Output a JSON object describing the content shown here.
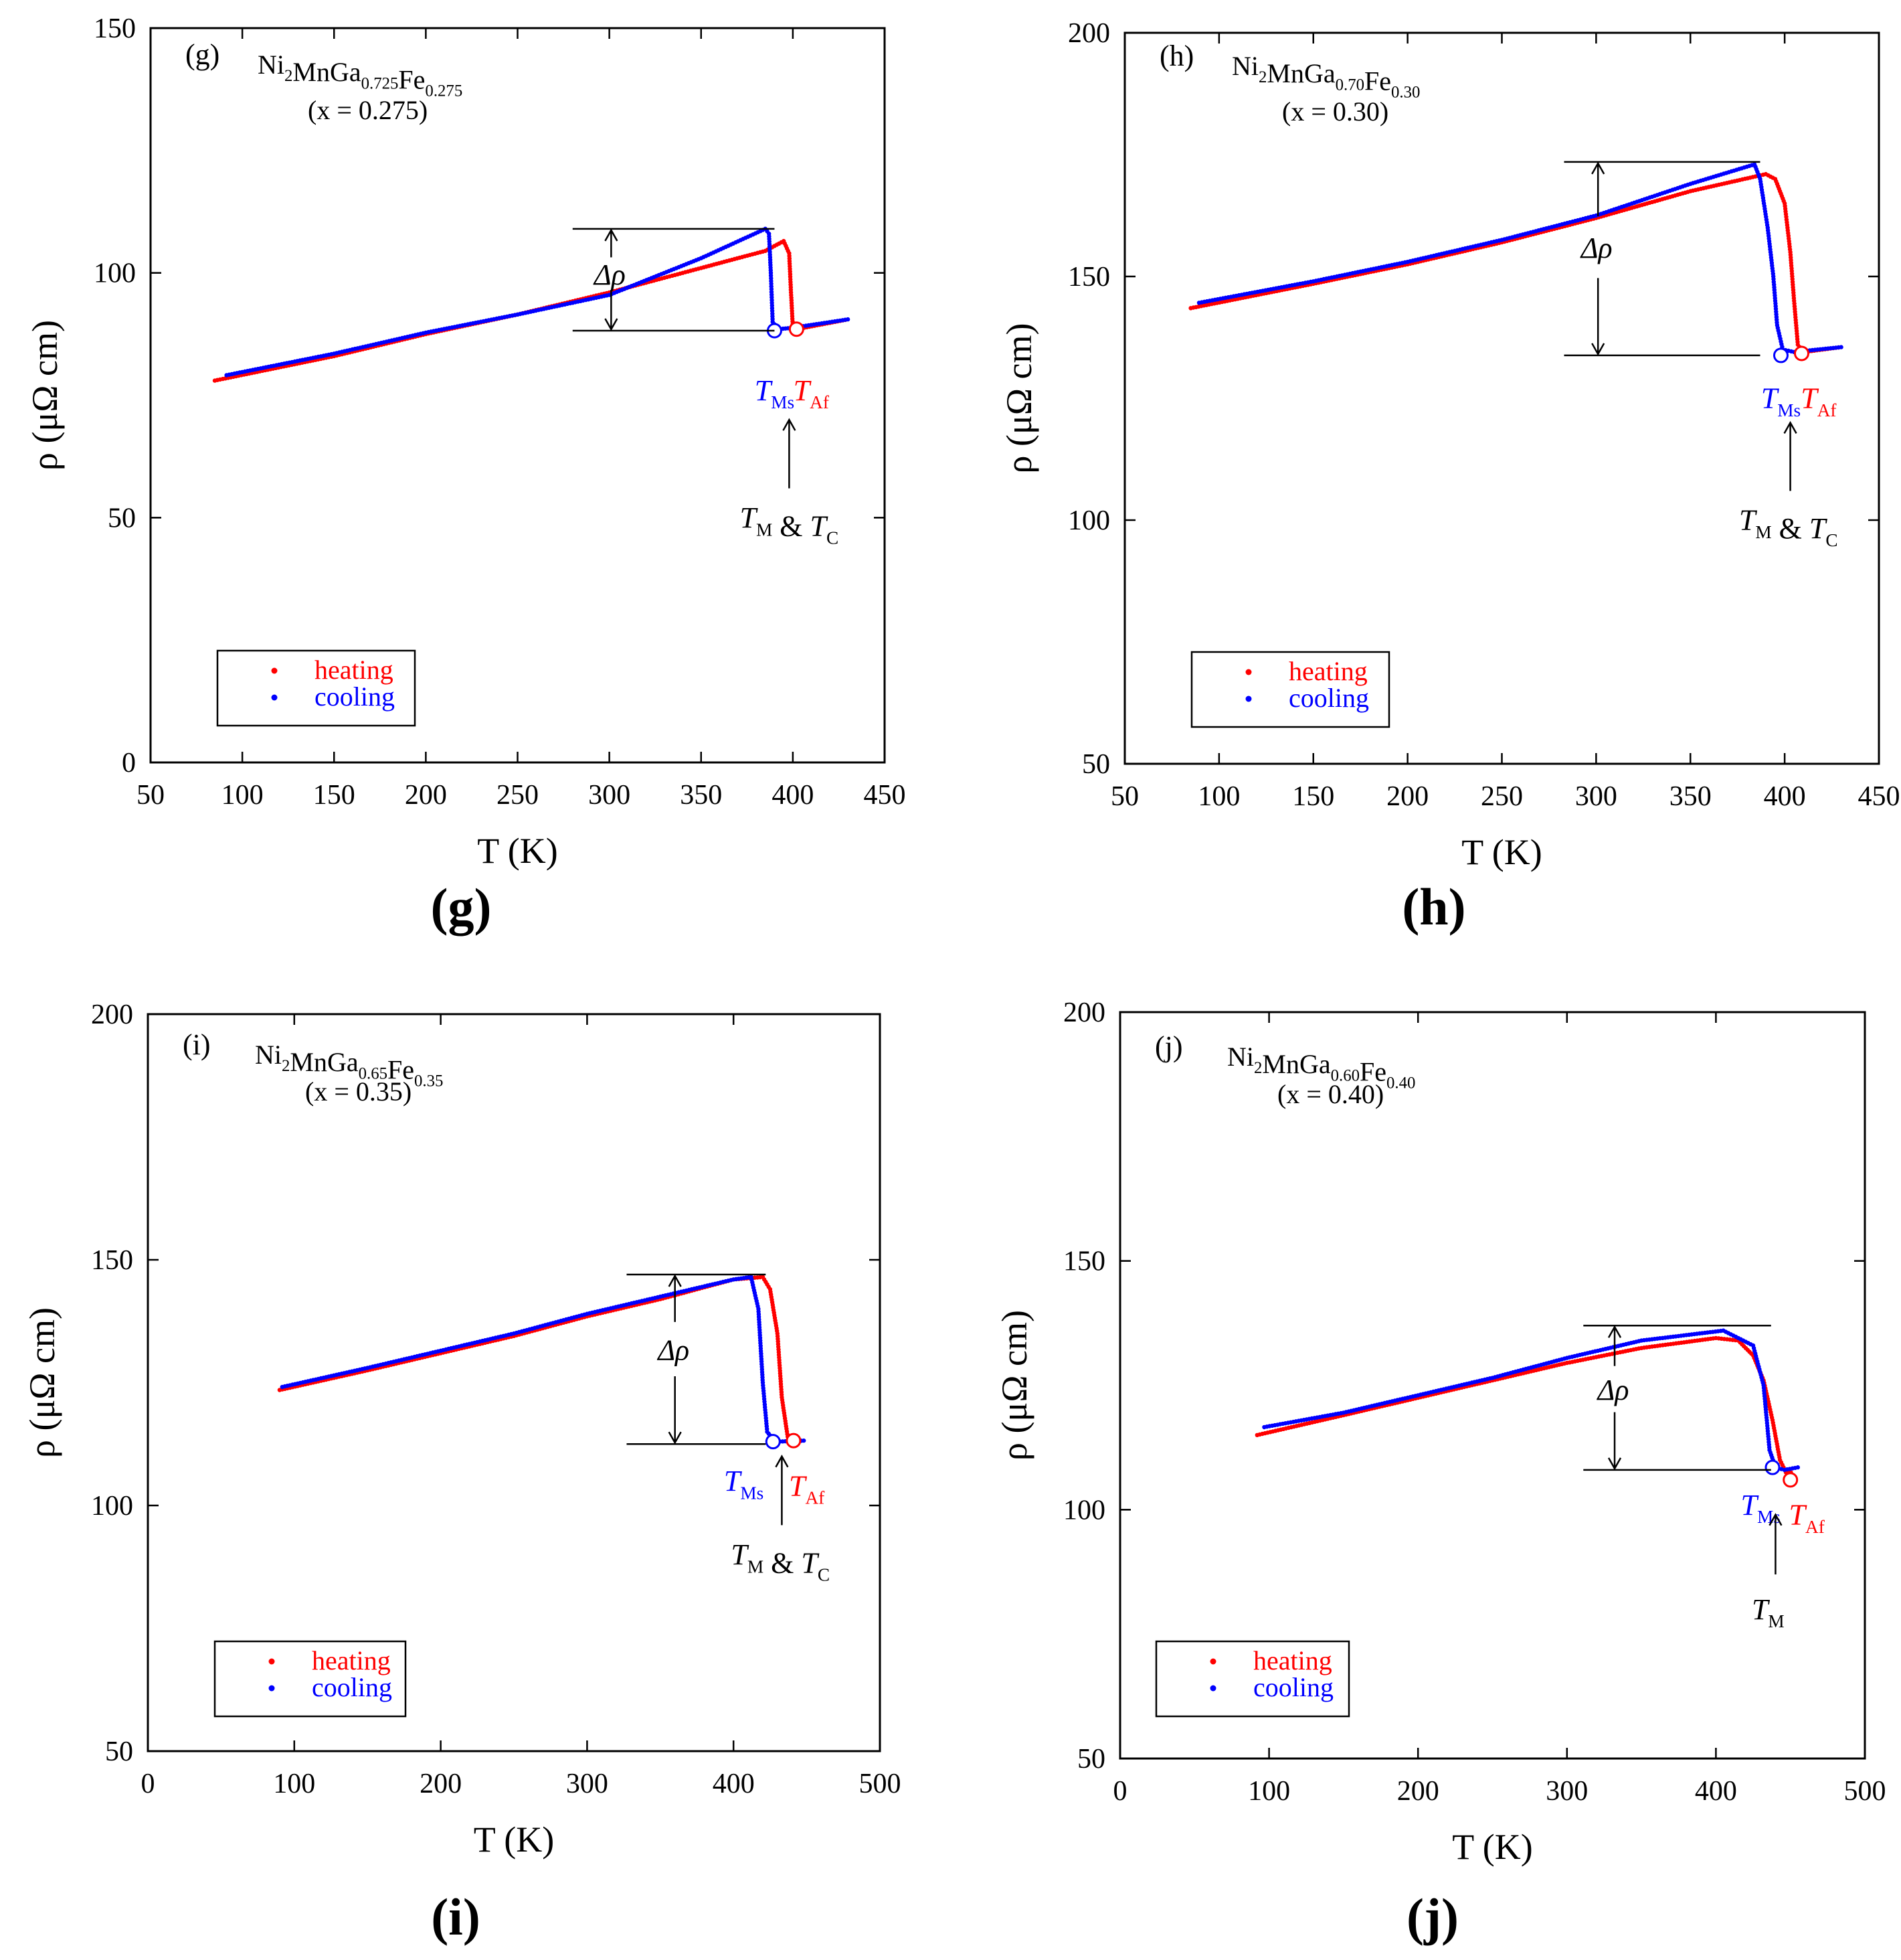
{
  "colors": {
    "heating": "#ff0000",
    "cooling": "#0000ff",
    "axis": "#000000"
  },
  "chart_data": [
    {
      "type": "scatter",
      "panel_label": "(g)",
      "caption": "(g)",
      "composition": {
        "base": "Ni",
        "sub1": "2",
        "mid": "MnGa",
        "sub2": "0.725",
        "end": "Fe",
        "sub3": "0.275"
      },
      "x_value_label": "(x = 0.275)",
      "xlabel": "T (K)",
      "ylabel": "ρ (μΩ cm)",
      "xlim": [
        50,
        450
      ],
      "ylim": [
        0,
        150
      ],
      "xticks": [
        50,
        100,
        150,
        200,
        250,
        300,
        350,
        400,
        450
      ],
      "yticks": [
        0,
        50,
        100,
        150
      ],
      "legend": [
        "heating",
        "cooling"
      ],
      "series": [
        {
          "name": "heating",
          "points": [
            [
              85,
              78
            ],
            [
              150,
              83
            ],
            [
              200,
              87.5
            ],
            [
              250,
              91.5
            ],
            [
              300,
              96
            ],
            [
              350,
              101
            ],
            [
              385,
              104.5
            ],
            [
              395,
              106.5
            ],
            [
              398,
              104
            ],
            [
              399,
              96
            ],
            [
              400,
              89
            ],
            [
              402,
              88.5
            ],
            [
              430,
              90.5
            ]
          ]
        },
        {
          "name": "cooling",
          "points": [
            [
              430,
              90.5
            ],
            [
              400,
              88.8
            ],
            [
              392,
              88.5
            ],
            [
              389,
              90
            ],
            [
              388,
              100
            ],
            [
              387,
              108
            ],
            [
              385,
              109
            ],
            [
              350,
              103
            ],
            [
              300,
              95.5
            ],
            [
              250,
              91.5
            ],
            [
              200,
              87.8
            ],
            [
              150,
              83.5
            ],
            [
              90,
              79
            ]
          ]
        }
      ],
      "markers": [
        {
          "name": "T_Ms",
          "series": "cooling",
          "x": 390,
          "y": 88.2
        },
        {
          "name": "T_Af",
          "series": "heating",
          "x": 402,
          "y": 88.5
        }
      ],
      "delta_rho": {
        "label": "Δρ",
        "x_start": 280,
        "x_end": 390,
        "y_top": 109,
        "y_bottom": 88.2,
        "arrow_x": 301
      },
      "transition_labels": {
        "T_Ms": {
          "text": "T",
          "sub": "Ms",
          "x": 390,
          "y": 74
        },
        "T_Af": {
          "text": "T",
          "sub": "Af",
          "x": 410,
          "y": 74
        },
        "T_M_T_C": {
          "t1": "T",
          "sub1": "M",
          "amp": " & ",
          "t2": "T",
          "sub2": "C",
          "x": 398,
          "y": 48,
          "arrow_x": 398,
          "arrow_from": 56,
          "arrow_to": 70
        }
      }
    },
    {
      "type": "scatter",
      "panel_label": "(h)",
      "caption": "(h)",
      "composition": {
        "base": "Ni",
        "sub1": "2",
        "mid": "MnGa",
        "sub2": "0.70",
        "end": "Fe",
        "sub3": "0.30"
      },
      "x_value_label": "(x = 0.30)",
      "xlabel": "T (K)",
      "ylabel": "ρ (μΩ cm)",
      "xlim": [
        50,
        450
      ],
      "ylim": [
        50,
        200
      ],
      "xticks": [
        50,
        100,
        150,
        200,
        250,
        300,
        350,
        400,
        450
      ],
      "yticks": [
        50,
        100,
        150,
        200
      ],
      "legend": [
        "heating",
        "cooling"
      ],
      "series": [
        {
          "name": "heating",
          "points": [
            [
              85,
              143.5
            ],
            [
              150,
              148.5
            ],
            [
              200,
              152.5
            ],
            [
              250,
              157
            ],
            [
              300,
              162
            ],
            [
              350,
              167.5
            ],
            [
              390,
              171
            ],
            [
              395,
              170
            ],
            [
              400,
              165
            ],
            [
              403,
              155
            ],
            [
              405,
              145
            ],
            [
              407,
              136
            ],
            [
              410,
              134.5
            ],
            [
              430,
              135.5
            ]
          ]
        },
        {
          "name": "cooling",
          "points": [
            [
              430,
              135.5
            ],
            [
              405,
              134.5
            ],
            [
              399,
              135
            ],
            [
              396,
              140
            ],
            [
              394,
              150
            ],
            [
              391,
              160
            ],
            [
              387,
              170
            ],
            [
              384,
              173
            ],
            [
              350,
              169
            ],
            [
              300,
              162.5
            ],
            [
              250,
              157.5
            ],
            [
              200,
              153
            ],
            [
              150,
              149
            ],
            [
              88,
              144.5
            ]
          ]
        }
      ],
      "markers": [
        {
          "name": "T_Ms",
          "series": "cooling",
          "x": 398,
          "y": 133.8
        },
        {
          "name": "T_Af",
          "series": "heating",
          "x": 409,
          "y": 134.2
        }
      ],
      "delta_rho": {
        "label": "Δρ",
        "x_start": 283,
        "x_end": 387,
        "y_top": 173.5,
        "y_bottom": 133.8,
        "arrow_x": 301
      },
      "transition_labels": {
        "T_Ms": {
          "text": "T",
          "sub": "Ms",
          "x": 398,
          "y": 123
        },
        "T_Af": {
          "text": "T",
          "sub": "Af",
          "x": 418,
          "y": 123
        },
        "T_M_T_C": {
          "t1": "T",
          "sub1": "M",
          "amp": " & ",
          "t2": "T",
          "sub2": "C",
          "x": 402,
          "y": 98,
          "arrow_x": 403,
          "arrow_from": 106,
          "arrow_to": 120
        }
      }
    },
    {
      "type": "scatter",
      "panel_label": "(i)",
      "caption": "(i)",
      "composition": {
        "base": "Ni",
        "sub1": "2",
        "mid": "MnGa",
        "sub2": "0.65",
        "end": "Fe",
        "sub3": "0.35"
      },
      "x_value_label": "(x = 0.35)",
      "xlabel": "T (K)",
      "ylabel": "ρ (μΩ cm)",
      "xlim": [
        0,
        500
      ],
      "ylim": [
        50,
        200
      ],
      "xticks": [
        0,
        100,
        200,
        300,
        400,
        500
      ],
      "yticks": [
        50,
        100,
        150,
        200
      ],
      "legend": [
        "heating",
        "cooling"
      ],
      "series": [
        {
          "name": "heating",
          "points": [
            [
              90,
              123.5
            ],
            [
              150,
              127.5
            ],
            [
              200,
              131
            ],
            [
              250,
              134.5
            ],
            [
              300,
              138.5
            ],
            [
              350,
              142
            ],
            [
              400,
              146
            ],
            [
              420,
              146.5
            ],
            [
              425,
              144
            ],
            [
              430,
              135
            ],
            [
              433,
              122
            ],
            [
              437,
              114
            ],
            [
              442,
              113.2
            ],
            [
              448,
              113.2
            ]
          ]
        },
        {
          "name": "cooling",
          "points": [
            [
              448,
              113.2
            ],
            [
              430,
              113
            ],
            [
              427,
              113.5
            ],
            [
              423,
              115
            ],
            [
              420,
              125
            ],
            [
              417,
              140
            ],
            [
              412,
              146.5
            ],
            [
              400,
              146
            ],
            [
              350,
              142.5
            ],
            [
              300,
              139
            ],
            [
              250,
              135
            ],
            [
              200,
              131.5
            ],
            [
              150,
              128
            ],
            [
              90,
              124
            ]
          ]
        }
      ],
      "markers": [
        {
          "name": "T_Ms",
          "series": "cooling",
          "x": 427,
          "y": 113
        },
        {
          "name": "T_Af",
          "series": "heating",
          "x": 441,
          "y": 113.2
        }
      ],
      "delta_rho": {
        "label": "Δρ",
        "x_start": 327,
        "x_end": 422,
        "y_top": 147,
        "y_bottom": 112.5,
        "arrow_x": 360
      },
      "transition_labels": {
        "T_Ms": {
          "text": "T",
          "sub": "Ms",
          "x": 407,
          "y": 103
        },
        "T_Af": {
          "text": "T",
          "sub": "Af",
          "x": 450,
          "y": 102
        },
        "T_M_T_C": {
          "t1": "T",
          "sub1": "M",
          "amp": " & ",
          "t2": "T",
          "sub2": "C",
          "x": 432,
          "y": 88,
          "arrow_x": 433,
          "arrow_from": 96,
          "arrow_to": 110
        }
      }
    },
    {
      "type": "scatter",
      "panel_label": "(j)",
      "caption": "(j)",
      "composition": {
        "base": "Ni",
        "sub1": "2",
        "mid": "MnGa",
        "sub2": "0.60",
        "end": "Fe",
        "sub3": "0.40"
      },
      "x_value_label": "(x = 0.40)",
      "xlabel": "T (K)",
      "ylabel": "ρ (μΩ cm)",
      "xlim": [
        0,
        500
      ],
      "ylim": [
        50,
        200
      ],
      "xticks": [
        0,
        100,
        200,
        300,
        400,
        500
      ],
      "yticks": [
        50,
        100,
        150,
        200
      ],
      "legend": [
        "heating",
        "cooling"
      ],
      "series": [
        {
          "name": "heating",
          "points": [
            [
              92,
              115
            ],
            [
              150,
              119
            ],
            [
              200,
              122.5
            ],
            [
              250,
              126
            ],
            [
              300,
              129.5
            ],
            [
              350,
              132.5
            ],
            [
              400,
              134.5
            ],
            [
              415,
              134
            ],
            [
              425,
              131
            ],
            [
              432,
              126
            ],
            [
              438,
              118
            ],
            [
              443,
              110
            ],
            [
              447,
              107.5
            ],
            [
              452,
              107.5
            ]
          ]
        },
        {
          "name": "cooling",
          "points": [
            [
              455,
              108.5
            ],
            [
              446,
              108
            ],
            [
              440,
              108.5
            ],
            [
              436,
              112
            ],
            [
              432,
              125
            ],
            [
              425,
              133
            ],
            [
              405,
              136
            ],
            [
              350,
              134
            ],
            [
              300,
              130.5
            ],
            [
              250,
              126.5
            ],
            [
              200,
              123
            ],
            [
              150,
              119.5
            ],
            [
              95,
              116.5
            ]
          ]
        }
      ],
      "markers": [
        {
          "name": "T_Ms",
          "series": "cooling",
          "x": 438,
          "y": 108.5
        },
        {
          "name": "T_Af",
          "series": "heating",
          "x": 450,
          "y": 106
        }
      ],
      "delta_rho": {
        "label": "Δρ",
        "x_start": 311,
        "x_end": 437,
        "y_top": 137,
        "y_bottom": 108,
        "arrow_x": 332
      },
      "transition_labels": {
        "T_Ms": {
          "text": "T",
          "sub": "Ms",
          "x": 430,
          "y": 99
        },
        "T_Af": {
          "text": "T",
          "sub": "Af",
          "x": 461,
          "y": 97
        },
        "T_M": {
          "t1": "T",
          "sub1": "M",
          "x": 435,
          "y": 78,
          "arrow_x": 440,
          "arrow_from": 87,
          "arrow_to": 99
        }
      }
    }
  ]
}
